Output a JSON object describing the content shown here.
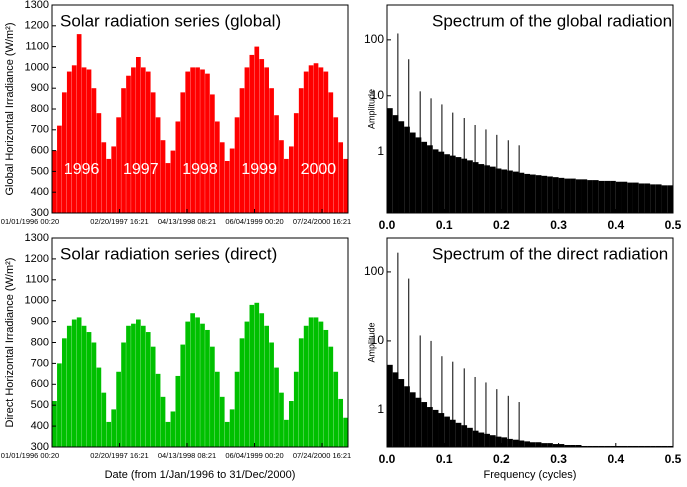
{
  "chart_data": [
    {
      "type": "bar",
      "title": "Solar radiation series (global)",
      "y_label": "Global Horizontal Irradiance (W/m²)",
      "annotations": [
        "1996",
        "1997",
        "1998",
        "1999",
        "2000"
      ],
      "color": "#ff0000",
      "x": [
        365,
        1096,
        1827,
        2558,
        3289,
        4020,
        4751,
        5482,
        6213,
        6944,
        7675,
        8406,
        9137,
        9868,
        10599,
        11330,
        12061,
        12792,
        13523,
        14254,
        14985,
        15716,
        16447,
        17178,
        17909,
        18640,
        19371,
        20102,
        20833,
        21564,
        22295,
        23026,
        23757,
        24488,
        25219,
        25950,
        26681,
        27412,
        28143,
        28874,
        29605,
        30336,
        31067,
        31798,
        32529,
        33260,
        33991,
        34722,
        35453,
        36184,
        36915,
        37646,
        38377,
        39108,
        39839,
        40570,
        41301,
        42032,
        42763,
        43494
      ],
      "values": [
        600,
        720,
        880,
        980,
        1010,
        1160,
        1000,
        990,
        900,
        780,
        640,
        560,
        620,
        760,
        900,
        960,
        1000,
        1050,
        1000,
        980,
        880,
        760,
        650,
        540,
        600,
        740,
        880,
        980,
        1000,
        1000,
        990,
        970,
        870,
        740,
        640,
        550,
        610,
        760,
        900,
        1000,
        1060,
        1100,
        1040,
        1000,
        900,
        770,
        650,
        560,
        620,
        780,
        900,
        980,
        1010,
        1020,
        1000,
        980,
        880,
        760,
        640,
        560
      ],
      "xlim": [
        0,
        43848
      ],
      "xticks": [
        {
          "value": 0,
          "label": "01/01/1996 00:20"
        },
        {
          "value": 10000,
          "label": "02/20/1997 16:21"
        },
        {
          "value": 20000,
          "label": "04/13/1998 08:21"
        },
        {
          "value": 30000,
          "label": "06/04/1999 00:20"
        },
        {
          "value": 40000,
          "label": "07/24/2000 16:21"
        }
      ],
      "ylim": [
        300,
        1300
      ],
      "yticks": [
        300,
        400,
        500,
        600,
        700,
        800,
        900,
        1000,
        1100,
        1200,
        1300
      ]
    },
    {
      "type": "bar",
      "title": "Solar radiation series (direct)",
      "y_label": "Direct Horizontal Irradiance (W/m²)",
      "x_label": "Date (from 1/Jan/1996 to 31/Dec/2000)",
      "color": "#00c000",
      "x": [
        365,
        1096,
        1827,
        2558,
        3289,
        4020,
        4751,
        5482,
        6213,
        6944,
        7675,
        8406,
        9137,
        9868,
        10599,
        11330,
        12061,
        12792,
        13523,
        14254,
        14985,
        15716,
        16447,
        17178,
        17909,
        18640,
        19371,
        20102,
        20833,
        21564,
        22295,
        23026,
        23757,
        24488,
        25219,
        25950,
        26681,
        27412,
        28143,
        28874,
        29605,
        30336,
        31067,
        31798,
        32529,
        33260,
        33991,
        34722,
        35453,
        36184,
        36915,
        37646,
        38377,
        39108,
        39839,
        40570,
        41301,
        42032,
        42763,
        43494
      ],
      "values": [
        520,
        700,
        820,
        880,
        910,
        920,
        880,
        850,
        800,
        680,
        560,
        420,
        480,
        660,
        800,
        880,
        890,
        910,
        880,
        850,
        780,
        650,
        540,
        420,
        470,
        640,
        790,
        900,
        940,
        920,
        890,
        860,
        780,
        660,
        540,
        420,
        480,
        660,
        820,
        900,
        980,
        990,
        940,
        880,
        800,
        680,
        560,
        430,
        520,
        660,
        820,
        880,
        920,
        920,
        900,
        860,
        780,
        660,
        530,
        440
      ],
      "xlim": [
        0,
        43848
      ],
      "xticks": [
        {
          "value": 0,
          "label": "01/01/1996 00:20"
        },
        {
          "value": 10000,
          "label": "02/20/1997 16:21"
        },
        {
          "value": 20000,
          "label": "04/13/1998 08:21"
        },
        {
          "value": 30000,
          "label": "06/04/1999 00:20"
        },
        {
          "value": 40000,
          "label": "07/24/2000 16:21"
        }
      ],
      "ylim": [
        300,
        1300
      ],
      "yticks": [
        300,
        400,
        500,
        600,
        700,
        800,
        900,
        1000,
        1100,
        1200,
        1300
      ]
    },
    {
      "type": "stem",
      "title": "Spectrum of the global radiation",
      "y_label": "Amplitude",
      "log_scale": true,
      "series": [
        {
          "color": "#000000",
          "x": [
            0.005,
            0.015,
            0.025,
            0.035,
            0.045,
            0.055,
            0.065,
            0.075,
            0.085,
            0.095,
            0.105,
            0.115,
            0.125,
            0.135,
            0.145,
            0.155,
            0.165,
            0.175,
            0.185,
            0.195,
            0.205,
            0.215,
            0.225,
            0.235,
            0.245,
            0.255,
            0.265,
            0.275,
            0.285,
            0.295,
            0.305,
            0.315,
            0.325,
            0.335,
            0.345,
            0.355,
            0.365,
            0.375,
            0.385,
            0.395,
            0.405,
            0.415,
            0.425,
            0.435,
            0.445,
            0.455,
            0.465,
            0.475,
            0.485,
            0.495
          ],
          "values": [
            6,
            4.5,
            3.5,
            2.8,
            2.2,
            1.8,
            1.5,
            1.3,
            1.1,
            1.0,
            0.9,
            0.85,
            0.8,
            0.75,
            0.7,
            0.65,
            0.6,
            0.57,
            0.54,
            0.5,
            0.48,
            0.46,
            0.44,
            0.42,
            0.4,
            0.39,
            0.38,
            0.37,
            0.36,
            0.35,
            0.34,
            0.33,
            0.33,
            0.32,
            0.32,
            0.31,
            0.31,
            0.3,
            0.3,
            0.3,
            0.29,
            0.29,
            0.28,
            0.28,
            0.27,
            0.27,
            0.26,
            0.26,
            0.25,
            0.25
          ]
        },
        {
          "color": "#000000",
          "x": [
            0.019,
            0.038,
            0.058,
            0.077,
            0.096,
            0.115,
            0.135,
            0.154,
            0.173,
            0.192,
            0.212,
            0.231
          ],
          "values": [
            130,
            45,
            12,
            9,
            7,
            5,
            4,
            3,
            2.5,
            2,
            1.6,
            1.3
          ]
        }
      ],
      "xlim": [
        0,
        0.5
      ],
      "xticks": [
        {
          "value": 0,
          "label": "0.0"
        },
        0.1,
        0.2,
        0.3,
        0.4,
        0.5
      ],
      "ylim": [
        0.08,
        420
      ],
      "yticks": [
        1,
        10,
        100
      ]
    },
    {
      "type": "stem",
      "title": "Spectrum of the direct radiation",
      "y_label": "Amplitude",
      "x_label": "Frequency (cycles)",
      "log_scale": true,
      "series": [
        {
          "color": "#000000",
          "x": [
            0.005,
            0.015,
            0.025,
            0.035,
            0.045,
            0.055,
            0.065,
            0.075,
            0.085,
            0.095,
            0.105,
            0.115,
            0.125,
            0.135,
            0.145,
            0.155,
            0.165,
            0.175,
            0.185,
            0.195,
            0.205,
            0.215,
            0.225,
            0.235,
            0.245,
            0.255,
            0.265,
            0.275,
            0.285,
            0.295,
            0.305,
            0.315,
            0.325,
            0.335,
            0.345,
            0.355,
            0.365,
            0.375,
            0.385,
            0.395,
            0.405,
            0.415,
            0.425,
            0.435,
            0.445,
            0.455,
            0.465,
            0.475,
            0.485,
            0.495
          ],
          "values": [
            4.5,
            3.5,
            2.8,
            2.2,
            1.8,
            1.5,
            1.3,
            1.1,
            1.0,
            0.9,
            0.8,
            0.72,
            0.65,
            0.6,
            0.55,
            0.5,
            0.47,
            0.45,
            0.43,
            0.41,
            0.4,
            0.38,
            0.37,
            0.36,
            0.35,
            0.34,
            0.34,
            0.33,
            0.33,
            0.32,
            0.32,
            0.31,
            0.31,
            0.31,
            0.3,
            0.3,
            0.3,
            0.3,
            0.3,
            0.3,
            0.3,
            0.3,
            0.3,
            0.3,
            0.3,
            0.3,
            0.3,
            0.3,
            0.3,
            0.3
          ]
        },
        {
          "color": "#000000",
          "x": [
            0.019,
            0.038,
            0.058,
            0.077,
            0.096,
            0.115,
            0.135,
            0.154,
            0.173,
            0.192,
            0.212,
            0.231
          ],
          "values": [
            190,
            80,
            12,
            10,
            6,
            5,
            4,
            3,
            2.5,
            2,
            1.6,
            1.3
          ]
        }
      ],
      "xlim": [
        0,
        0.5
      ],
      "xticks": [
        {
          "value": 0,
          "label": "0.0"
        },
        0.1,
        0.2,
        0.3,
        0.4,
        0.5
      ],
      "ylim": [
        0.29,
        310
      ],
      "yticks": [
        1,
        10,
        100
      ]
    }
  ]
}
